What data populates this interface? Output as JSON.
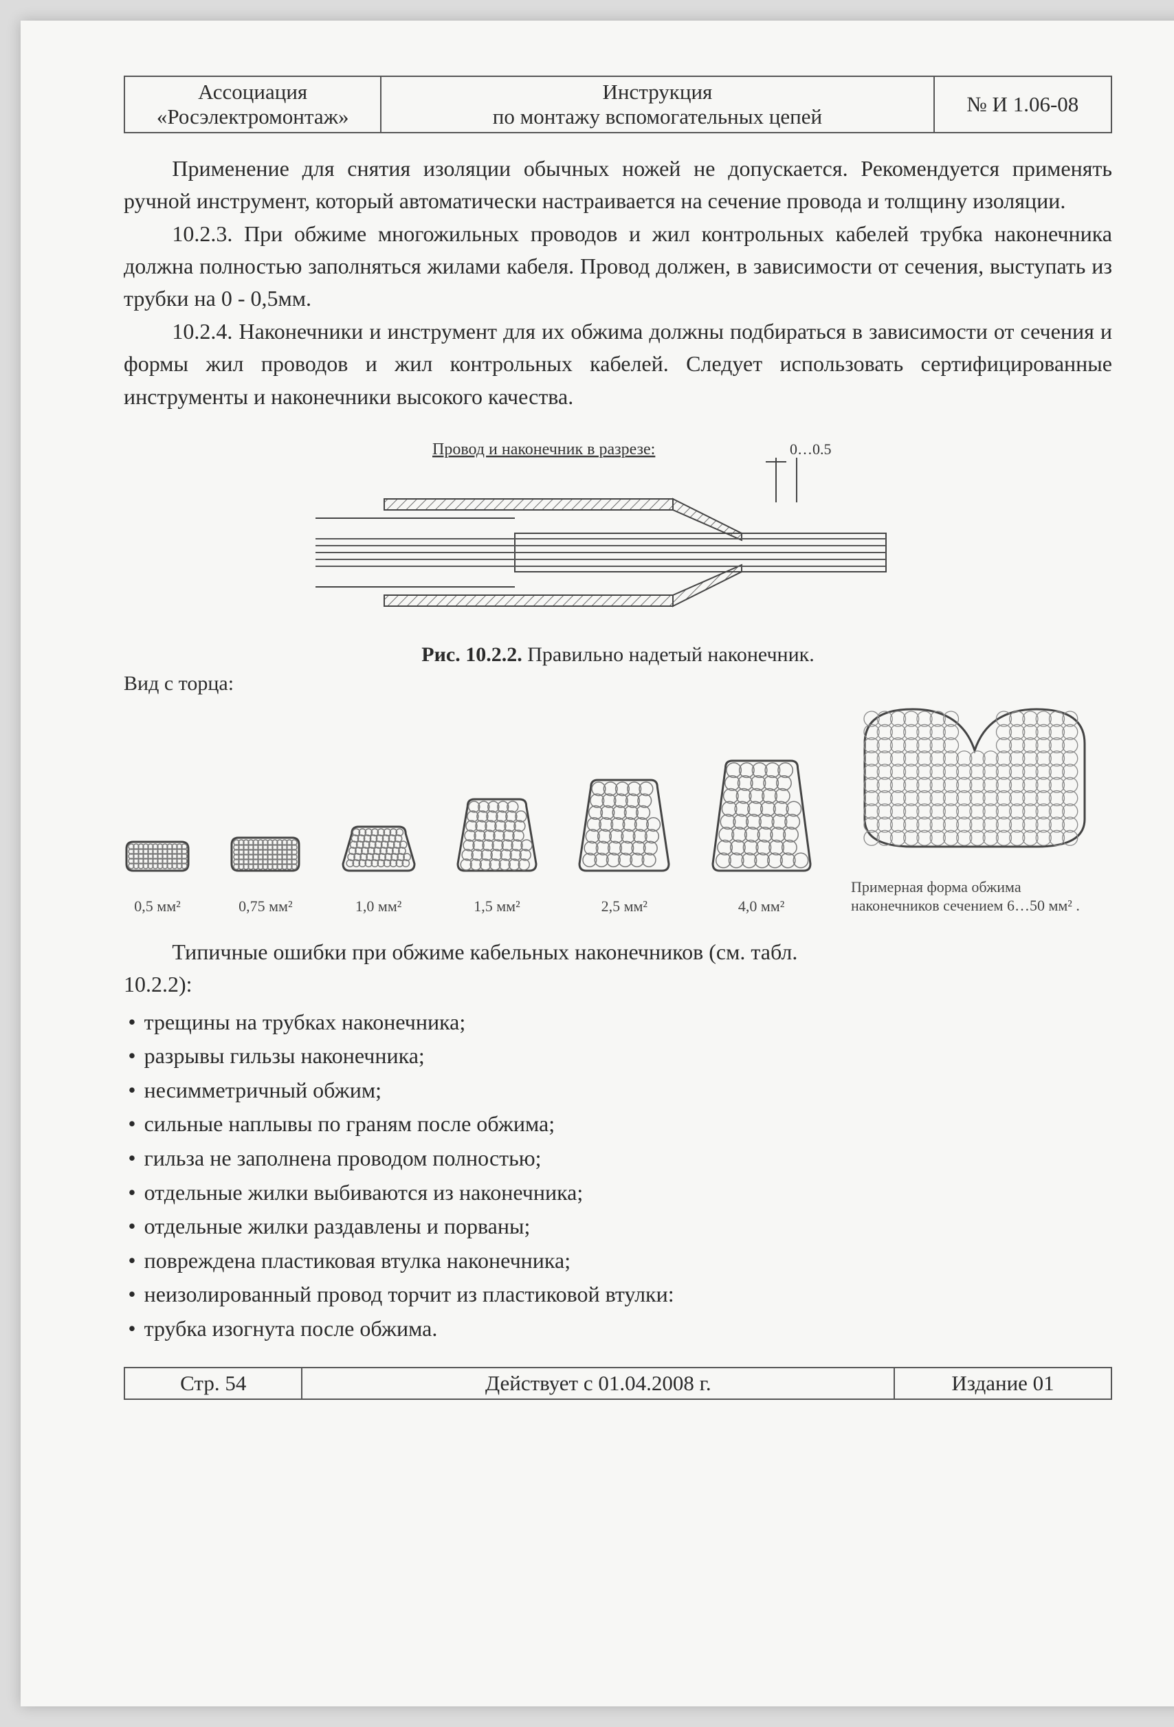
{
  "header": {
    "org_line1": "Ассоциация",
    "org_line2": "«Росэлектромонтаж»",
    "title_line1": "Инструкция",
    "title_line2": "по монтажу вспомогательных цепей",
    "code": "№ И 1.06-08"
  },
  "paragraphs": {
    "p1": "Применение для снятия изоляции обычных ножей не допускается. Рекомендуется применять ручной инструмент, который автоматически настраивается на сечение провода и толщину изоляции.",
    "p2": "10.2.3. При обжиме многожильных проводов и жил контрольных кабелей трубка наконечника должна полностью заполняться жилами кабеля. Провод должен, в зависимости от сечения, выступать из трубки на 0 - 0,5мм.",
    "p3": "10.2.4. Наконечники и инструмент для их обжима должны подбираться в зависимости от сечения и формы жил проводов и жил контрольных кабелей. Следует использовать сертифицированные инструменты и наконечники высокого качества."
  },
  "figure": {
    "diagram_title": "Провод и наконечник в разрезе:",
    "dim_label": "0…0.5",
    "caption_bold": "Рис. 10.2.2.",
    "caption_rest": " Правильно надетый наконечник.",
    "side_view": "Вид с торца:",
    "line_color": "#444444",
    "hatch_color": "#6b6b6b",
    "bg": "#f7f7f5"
  },
  "shapes": {
    "items": [
      {
        "label": "0,5 мм²",
        "w": 98,
        "h": 50
      },
      {
        "label": "0,75 мм²",
        "w": 106,
        "h": 56
      },
      {
        "label": "1,0 мм²",
        "w": 112,
        "h": 72
      },
      {
        "label": "1,5 мм²",
        "w": 122,
        "h": 112
      },
      {
        "label": "2,5 мм²",
        "w": 138,
        "h": 140
      },
      {
        "label": "4,0 мм²",
        "w": 150,
        "h": 168
      }
    ],
    "last_label": "Примерная форма обжима наконечников сечением 6…50 мм² ."
  },
  "errors_intro_a": "Типичные ошибки при обжиме кабельных наконечников (см. табл.",
  "errors_intro_b": "10.2.2):",
  "errors": [
    "трещины на трубках наконечника;",
    "разрывы гильзы наконечника;",
    "несимметричный обжим;",
    "сильные наплывы по граням после обжима;",
    "гильза не заполнена проводом полностью;",
    "отдельные жилки выбиваются из наконечника;",
    "отдельные жилки раздавлены и порваны;",
    "повреждена пластиковая втулка наконечника;",
    "неизолированный провод торчит из пластиковой втулки:",
    "трубка изогнута после обжима."
  ],
  "footer": {
    "page": "Стр. 54",
    "effective": "Действует с 01.04.2008 г.",
    "edition": "Издание 01"
  }
}
